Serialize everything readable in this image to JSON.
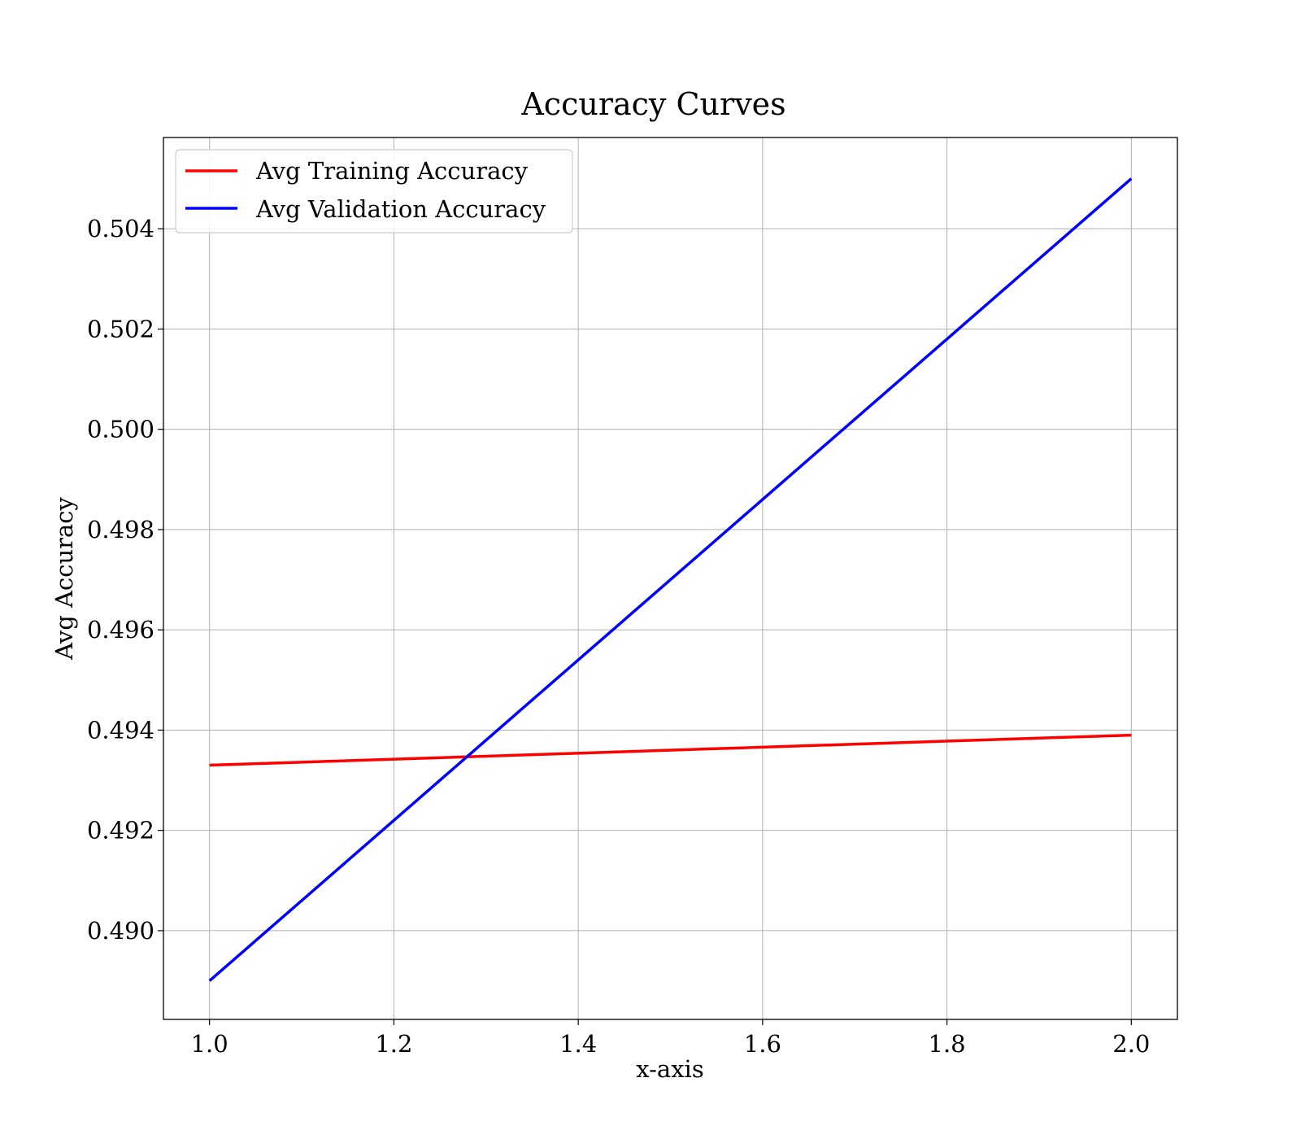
{
  "chart_data": {
    "type": "line",
    "title": "Accuracy Curves",
    "xlabel": "x-axis",
    "ylabel": "Avg Accuracy",
    "xlim": [
      0.95,
      2.05
    ],
    "ylim": [
      0.48823,
      0.50582
    ],
    "xticks": [
      1.0,
      1.2,
      1.4,
      1.6,
      1.8,
      2.0
    ],
    "xtick_labels": [
      "1.0",
      "1.2",
      "1.4",
      "1.6",
      "1.8",
      "2.0"
    ],
    "yticks": [
      0.49,
      0.492,
      0.494,
      0.496,
      0.498,
      0.5,
      0.502,
      0.504
    ],
    "ytick_labels": [
      "0.490",
      "0.492",
      "0.494",
      "0.496",
      "0.498",
      "0.500",
      "0.502",
      "0.504"
    ],
    "grid": true,
    "legend_position": "top-left",
    "x": [
      1.0,
      2.0
    ],
    "series": [
      {
        "name": "Avg Training Accuracy",
        "color": "#ff0000",
        "values": [
          0.4933,
          0.4939
        ]
      },
      {
        "name": "Avg Validation Accuracy",
        "color": "#0000ff",
        "values": [
          0.489,
          0.505
        ]
      }
    ]
  }
}
